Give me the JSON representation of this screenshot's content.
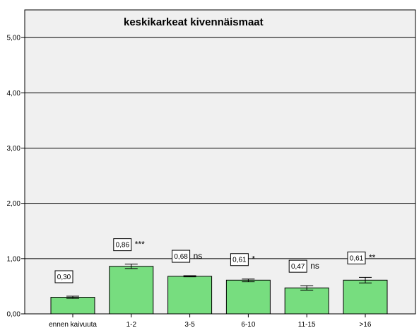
{
  "chart_data": {
    "type": "bar",
    "title": "keskikarkeat kivennäismaat",
    "xlabel": "",
    "ylabel": "",
    "ylim": [
      0,
      5.5
    ],
    "yticks": [
      "0,00",
      "1,00",
      "2,00",
      "3,00",
      "4,00",
      "5,00"
    ],
    "ytick_values": [
      0,
      1,
      2,
      3,
      4,
      5
    ],
    "grid": true,
    "categories": [
      "ennen kaivuuta",
      "1-2",
      "3-5",
      "6-10",
      "11-15",
      ">16"
    ],
    "values": [
      0.3,
      0.86,
      0.68,
      0.61,
      0.47,
      0.61
    ],
    "value_labels": [
      "0,30",
      "0,86",
      "0,68",
      "0,61",
      "0,47",
      "0,61"
    ],
    "error_low": [
      0.28,
      0.82,
      0.67,
      0.58,
      0.43,
      0.56
    ],
    "error_high": [
      0.32,
      0.9,
      0.69,
      0.63,
      0.51,
      0.66
    ],
    "significance": [
      "",
      "***",
      "ns",
      "*",
      "ns",
      "**"
    ],
    "colors": {
      "bar_fill": "#77dd7f",
      "bar_stroke": "#000000",
      "plot_bg": "#f0f0f0",
      "grid": "#000000"
    }
  }
}
